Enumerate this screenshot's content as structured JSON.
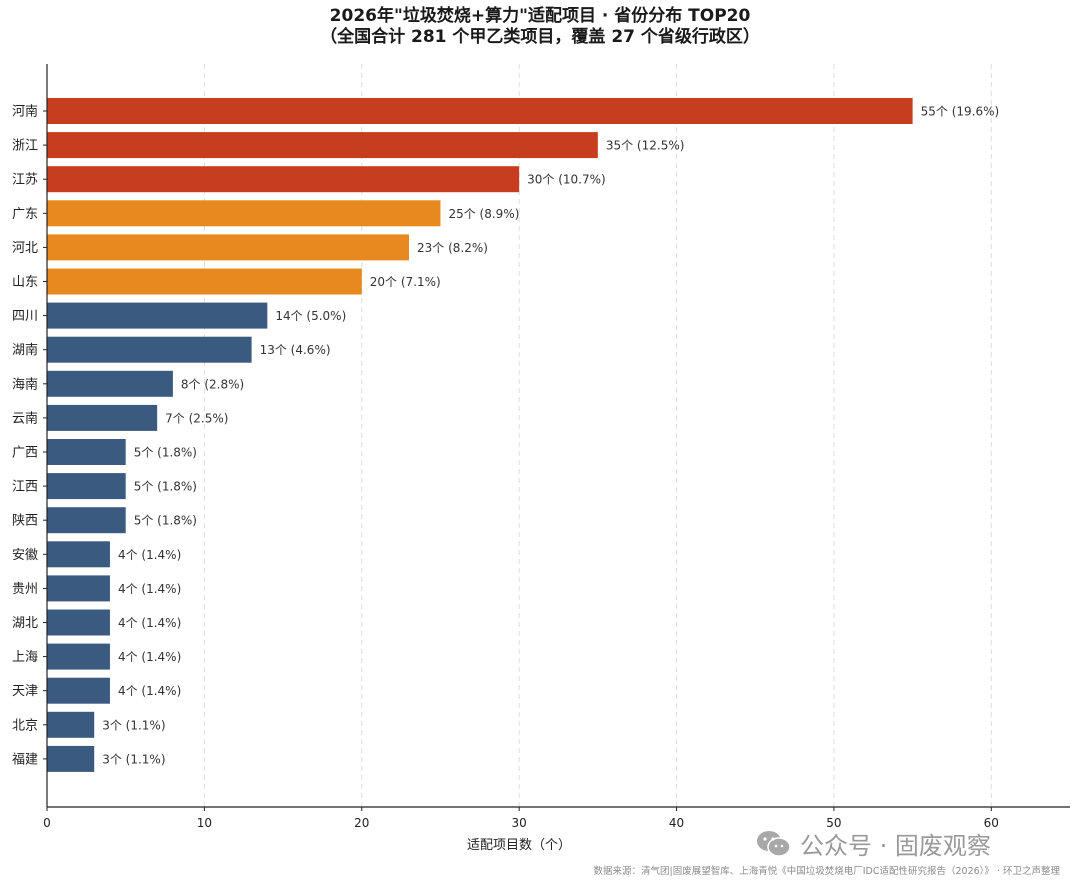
{
  "chart_data": {
    "type": "bar",
    "orientation": "horizontal",
    "title": "2026年\"垃圾焚烧+算力\"适配项目 · 省份分布 TOP20",
    "subtitle": "（全国合计 281 个甲乙类项目，覆盖 27 个省级行政区）",
    "xlabel": "适配项目数（个）",
    "ylabel": "",
    "xlim": [
      0,
      65
    ],
    "x_ticks": [
      0,
      10,
      20,
      30,
      40,
      50,
      60
    ],
    "grid": "x-dashed",
    "categories": [
      "河南",
      "浙江",
      "江苏",
      "广东",
      "河北",
      "山东",
      "四川",
      "湖南",
      "海南",
      "云南",
      "广西",
      "江西",
      "陕西",
      "安徽",
      "贵州",
      "湖北",
      "上海",
      "天津",
      "北京",
      "福建"
    ],
    "values": [
      55,
      35,
      30,
      25,
      23,
      20,
      14,
      13,
      8,
      7,
      5,
      5,
      5,
      4,
      4,
      4,
      4,
      4,
      3,
      3
    ],
    "data_labels": [
      "55个 (19.6%)",
      "35个 (12.5%)",
      "30个 (10.7%)",
      "25个 (8.9%)",
      "23个 (8.2%)",
      "20个 (7.1%)",
      "14个 (5.0%)",
      "13个 (4.6%)",
      "8个 (2.8%)",
      "7个 (2.5%)",
      "5个 (1.8%)",
      "5个 (1.8%)",
      "5个 (1.8%)",
      "4个 (1.4%)",
      "4个 (1.4%)",
      "4个 (1.4%)",
      "4个 (1.4%)",
      "4个 (1.4%)",
      "3个 (1.1%)",
      "3个 (1.1%)"
    ],
    "tier_colors": [
      "#c63e1f",
      "#c63e1f",
      "#c63e1f",
      "#e8891f",
      "#e8891f",
      "#e8891f",
      "#3b5a80",
      "#3b5a80",
      "#3b5a80",
      "#3b5a80",
      "#3b5a80",
      "#3b5a80",
      "#3b5a80",
      "#3b5a80",
      "#3b5a80",
      "#3b5a80",
      "#3b5a80",
      "#3b5a80",
      "#3b5a80",
      "#3b5a80"
    ]
  },
  "watermark": {
    "text": "公众号 · 固废观察",
    "icon": "wechat-icon"
  },
  "source": "数据来源：清气团|固废展望智库、上海青悦《中国垃圾焚烧电厂IDC适配性研究报告（2026）》 · 环卫之声整理"
}
